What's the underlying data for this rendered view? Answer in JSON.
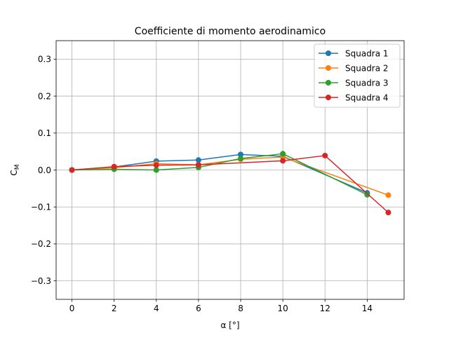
{
  "chart_data": {
    "type": "line",
    "title": "Coefficiente di momento aerodinamico",
    "xlabel": "α [°]",
    "ylabel_main": "C",
    "ylabel_sub": "M",
    "xlim": [
      -0.75,
      15.75
    ],
    "ylim": [
      -0.35,
      0.35
    ],
    "xticks": [
      0,
      2,
      4,
      6,
      8,
      10,
      12,
      14
    ],
    "xtick_labels": [
      "0",
      "2",
      "4",
      "6",
      "8",
      "10",
      "12",
      "14"
    ],
    "yticks": [
      -0.3,
      -0.2,
      -0.1,
      0.0,
      0.1,
      0.2,
      0.3
    ],
    "ytick_labels": [
      "−0.3",
      "−0.2",
      "−0.1",
      "0.0",
      "0.1",
      "0.2",
      "0.3"
    ],
    "grid": true,
    "legend_position": "top-right",
    "series": [
      {
        "name": "Squadra 1",
        "color": "#1f77b4",
        "marker": "circle",
        "x": [
          0,
          2,
          4,
          6,
          8,
          10,
          14
        ],
        "y": [
          0.0,
          0.008,
          0.024,
          0.027,
          0.042,
          0.037,
          -0.062
        ]
      },
      {
        "name": "Squadra 2",
        "color": "#ff7f0e",
        "marker": "circle",
        "x": [
          0,
          2,
          4,
          6,
          8,
          10,
          15
        ],
        "y": [
          0.0,
          0.006,
          0.017,
          0.014,
          0.029,
          0.035,
          -0.068
        ]
      },
      {
        "name": "Squadra 3",
        "color": "#2ca02c",
        "marker": "circle",
        "x": [
          0,
          2,
          4,
          6,
          8,
          10,
          14
        ],
        "y": [
          0.0,
          0.002,
          0.0,
          0.007,
          0.031,
          0.044,
          -0.067
        ]
      },
      {
        "name": "Squadra 4",
        "color": "#d62728",
        "marker": "circle",
        "x": [
          0,
          2,
          4,
          6,
          10,
          12,
          15
        ],
        "y": [
          0.0,
          0.009,
          0.013,
          0.014,
          0.025,
          0.039,
          -0.115
        ]
      }
    ]
  }
}
